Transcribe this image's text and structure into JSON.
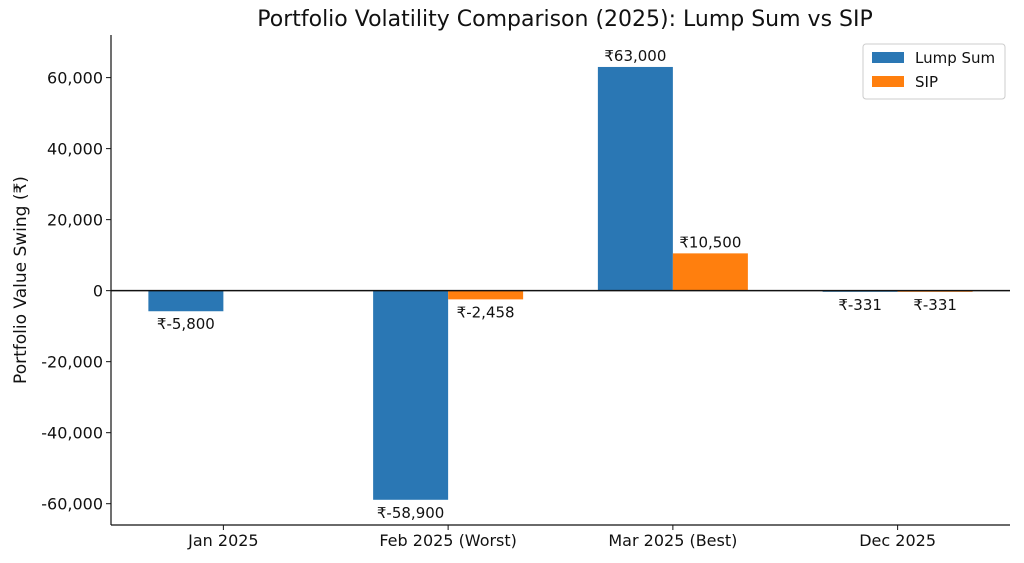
{
  "chart_data": {
    "type": "bar",
    "title": "Portfolio Volatility Comparison (2025): Lump Sum vs SIP",
    "xlabel": "",
    "ylabel": "Portfolio Value Swing (₹)",
    "categories": [
      "Jan 2025",
      "Feb 2025 (Worst)",
      "Mar 2025 (Best)",
      "Dec 2025"
    ],
    "series": [
      {
        "name": "Lump Sum",
        "color": "#2a77b4",
        "values": [
          -5800,
          -58900,
          63000,
          -331
        ],
        "labels": [
          "₹-5,800",
          "₹-58,900",
          "₹63,000",
          "₹-331"
        ]
      },
      {
        "name": "SIP",
        "color": "#ff7f0e",
        "values": [
          null,
          -2458,
          10500,
          -331
        ],
        "labels": [
          null,
          "₹-2,458",
          "₹10,500",
          "₹-331"
        ]
      }
    ],
    "yticks": [
      -60000,
      -40000,
      -20000,
      0,
      20000,
      40000,
      60000
    ],
    "ytick_labels": [
      "-60,000",
      "-40,000",
      "-20,000",
      "0",
      "20,000",
      "40,000",
      "60,000"
    ],
    "ylim": [
      -66000,
      72000
    ],
    "grid": false,
    "legend_position": "top-right"
  }
}
